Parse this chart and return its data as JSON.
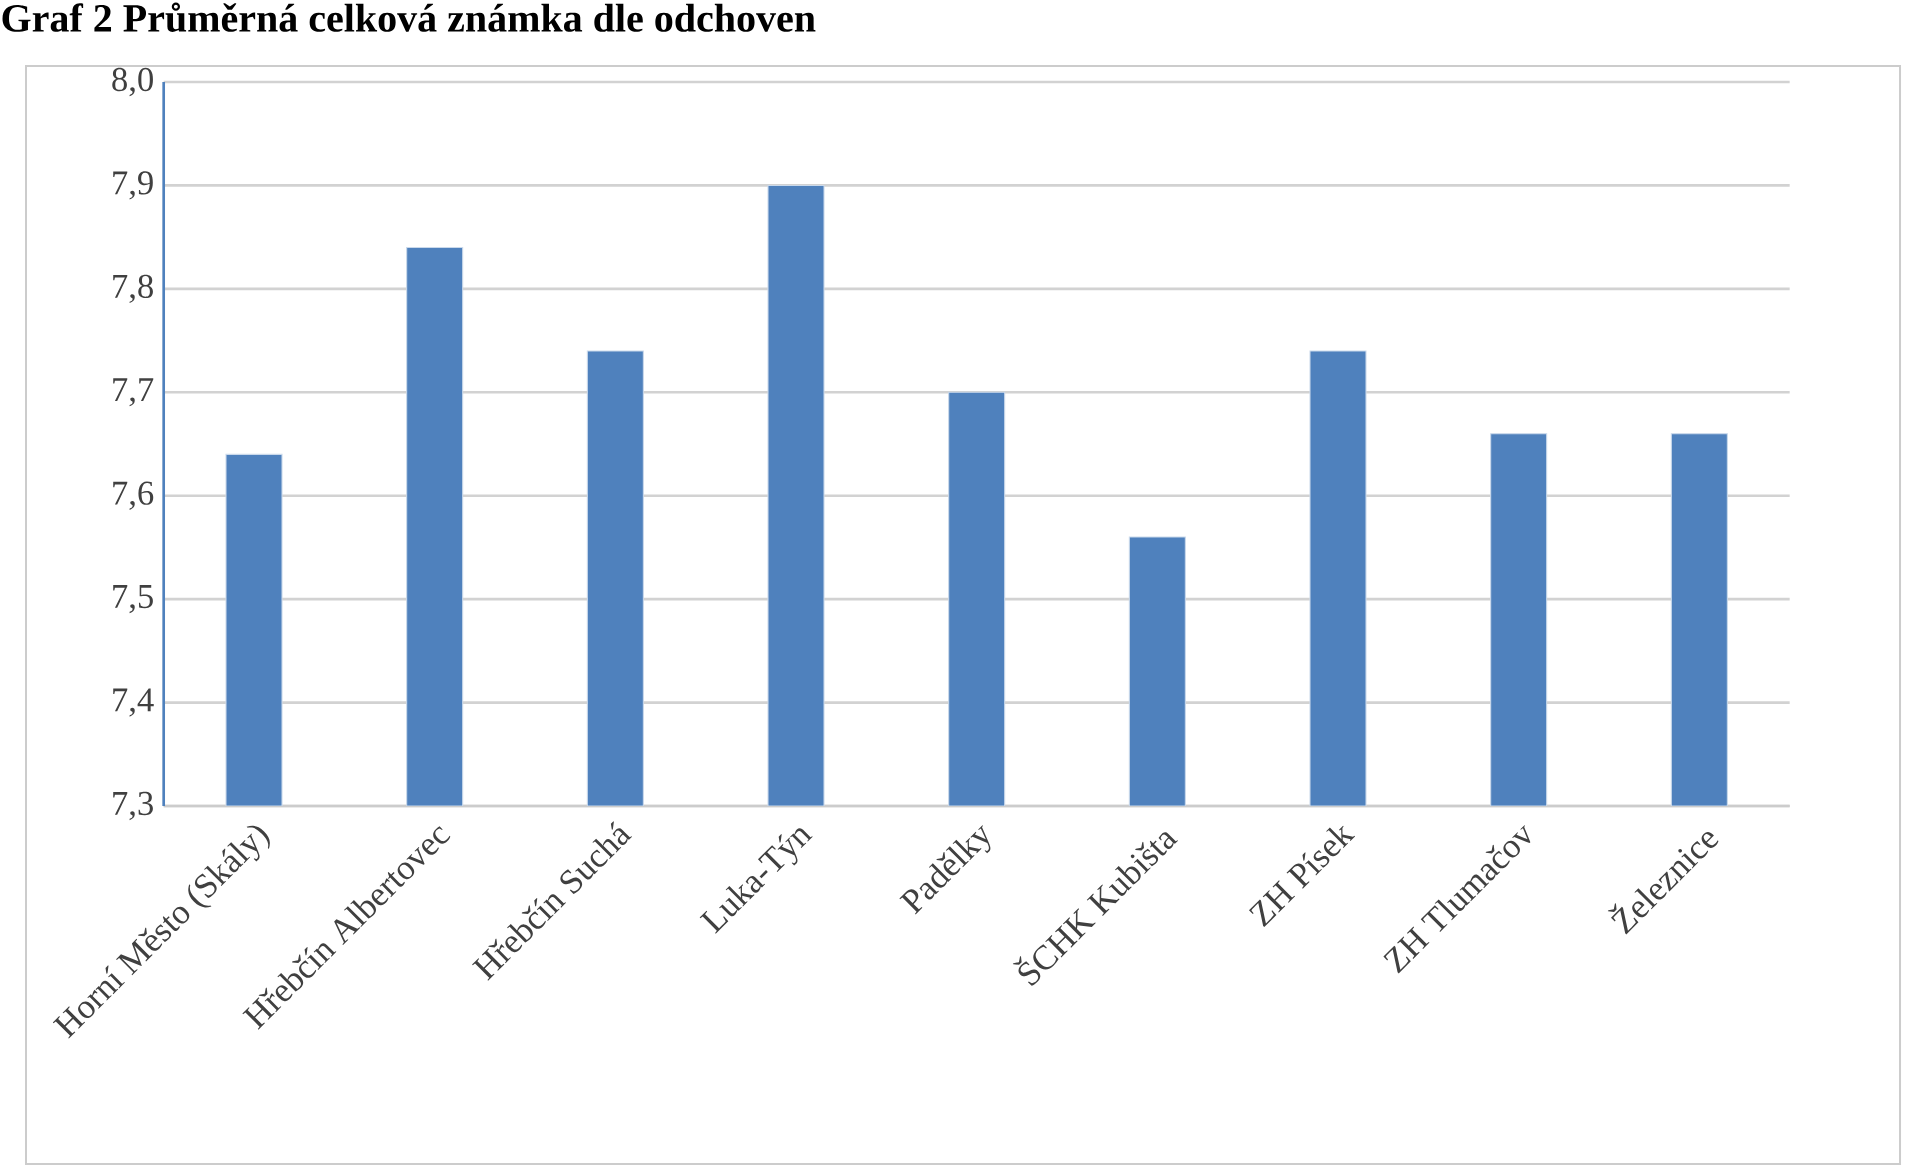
{
  "chart_data": {
    "type": "bar",
    "title": "Graf 2 Průměrná celková známka dle odchoven",
    "categories": [
      "Horní Město (Skály)",
      "Hřebčín Albertovec",
      "Hřebčín Suchá",
      "Luka-Týn",
      "Padělky",
      "ŠCHK Kubišta",
      "ZH Písek",
      "ZH Tlumačov",
      "Železnice"
    ],
    "values": [
      7.64,
      7.84,
      7.74,
      7.9,
      7.7,
      7.56,
      7.74,
      7.66,
      7.66
    ],
    "color": "#4f81bd",
    "ylim": [
      7.3,
      8.0
    ],
    "yticks": [
      {
        "value": 7.3,
        "label": "7,3"
      },
      {
        "value": 7.4,
        "label": "7,4"
      },
      {
        "value": 7.5,
        "label": "7,5"
      },
      {
        "value": 7.6,
        "label": "7,6"
      },
      {
        "value": 7.7,
        "label": "7,7"
      },
      {
        "value": 7.8,
        "label": "7,8"
      },
      {
        "value": 7.9,
        "label": "7,9"
      },
      {
        "value": 8.0,
        "label": "8,0"
      }
    ],
    "grid": "y"
  }
}
